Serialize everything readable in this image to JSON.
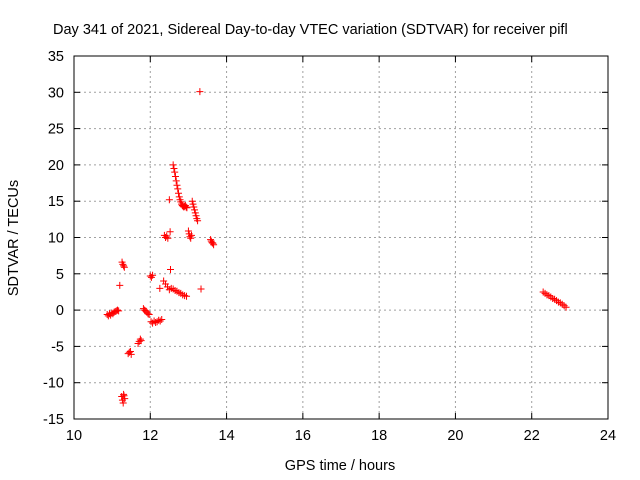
{
  "chart_data": {
    "type": "scatter",
    "title": "Day 341 of 2021, Sidereal Day-to-day VTEC variation (SDTVAR) for receiver pifl",
    "xlabel": "GPS time / hours",
    "ylabel": "SDTVAR / TECUs",
    "xlim": [
      10,
      24
    ],
    "ylim": [
      -15,
      35
    ],
    "xticks": [
      10,
      12,
      14,
      16,
      18,
      20,
      22,
      24
    ],
    "yticks": [
      -15,
      -10,
      -5,
      0,
      5,
      10,
      15,
      20,
      25,
      30,
      35
    ],
    "grid": true,
    "marker": "+",
    "series_color": "#ff0000",
    "series": [
      {
        "name": "SDTVAR",
        "points": [
          [
            10.87,
            -0.6
          ],
          [
            10.9,
            -0.8
          ],
          [
            10.93,
            -0.5
          ],
          [
            10.96,
            -0.7
          ],
          [
            10.99,
            -0.4
          ],
          [
            11.02,
            -0.5
          ],
          [
            11.05,
            -0.3
          ],
          [
            11.08,
            -0.2
          ],
          [
            11.11,
            -0.1
          ],
          [
            11.14,
            0.0
          ],
          [
            11.17,
            -0.1
          ],
          [
            11.2,
            3.4
          ],
          [
            11.26,
            6.6
          ],
          [
            11.28,
            6.3
          ],
          [
            11.3,
            6.1
          ],
          [
            11.32,
            5.9
          ],
          [
            11.25,
            -11.9
          ],
          [
            11.27,
            -12.4
          ],
          [
            11.29,
            -12.8
          ],
          [
            11.31,
            -11.8
          ],
          [
            11.33,
            -12.2
          ],
          [
            11.3,
            -11.6
          ],
          [
            11.42,
            -6.0
          ],
          [
            11.45,
            -5.8
          ],
          [
            11.48,
            -5.7
          ],
          [
            11.5,
            -6.1
          ],
          [
            11.68,
            -4.6
          ],
          [
            11.71,
            -4.3
          ],
          [
            11.74,
            -4.0
          ],
          [
            11.76,
            -4.2
          ],
          [
            11.82,
            0.2
          ],
          [
            11.85,
            0.0
          ],
          [
            11.88,
            -0.1
          ],
          [
            11.91,
            -0.3
          ],
          [
            11.94,
            -0.5
          ],
          [
            11.97,
            -0.6
          ],
          [
            12.0,
            4.7
          ],
          [
            12.03,
            4.5
          ],
          [
            12.06,
            4.8
          ],
          [
            12.02,
            -1.6
          ],
          [
            12.06,
            -1.8
          ],
          [
            12.1,
            -1.5
          ],
          [
            12.14,
            -1.7
          ],
          [
            12.18,
            -1.6
          ],
          [
            12.22,
            -1.4
          ],
          [
            12.26,
            -1.5
          ],
          [
            12.3,
            -1.3
          ],
          [
            12.25,
            3.0
          ],
          [
            12.37,
            10.3
          ],
          [
            12.4,
            10.0
          ],
          [
            12.43,
            10.2
          ],
          [
            12.46,
            9.9
          ],
          [
            12.35,
            4.0
          ],
          [
            12.4,
            3.6
          ],
          [
            12.45,
            3.2
          ],
          [
            12.5,
            15.2
          ],
          [
            12.52,
            10.8
          ],
          [
            12.53,
            5.6
          ],
          [
            12.5,
            2.8
          ],
          [
            12.55,
            3.0
          ],
          [
            12.6,
            2.9
          ],
          [
            12.65,
            2.7
          ],
          [
            12.7,
            2.6
          ],
          [
            12.75,
            2.4
          ],
          [
            12.8,
            2.3
          ],
          [
            12.85,
            2.1
          ],
          [
            12.9,
            2.0
          ],
          [
            12.95,
            1.9
          ],
          [
            12.6,
            20.0
          ],
          [
            12.62,
            19.5
          ],
          [
            12.64,
            19.0
          ],
          [
            12.66,
            18.4
          ],
          [
            12.68,
            17.8
          ],
          [
            12.7,
            17.2
          ],
          [
            12.72,
            16.7
          ],
          [
            12.74,
            16.1
          ],
          [
            12.76,
            15.6
          ],
          [
            12.78,
            15.2
          ],
          [
            12.8,
            14.9
          ],
          [
            12.82,
            14.6
          ],
          [
            12.84,
            14.4
          ],
          [
            12.86,
            14.3
          ],
          [
            12.88,
            14.2
          ],
          [
            12.9,
            14.3
          ],
          [
            12.92,
            14.4
          ],
          [
            12.94,
            14.2
          ],
          [
            12.96,
            14.1
          ],
          [
            13.0,
            10.9
          ],
          [
            13.02,
            10.5
          ],
          [
            13.04,
            10.1
          ],
          [
            13.06,
            9.9
          ],
          [
            13.08,
            10.3
          ],
          [
            13.1,
            15.0
          ],
          [
            13.12,
            14.6
          ],
          [
            13.14,
            14.2
          ],
          [
            13.16,
            13.8
          ],
          [
            13.18,
            13.4
          ],
          [
            13.2,
            13.0
          ],
          [
            13.22,
            12.6
          ],
          [
            13.24,
            12.3
          ],
          [
            13.3,
            30.1
          ],
          [
            13.33,
            2.9
          ],
          [
            13.58,
            9.7
          ],
          [
            13.6,
            9.5
          ],
          [
            13.62,
            9.3
          ],
          [
            13.64,
            9.2
          ],
          [
            13.66,
            9.0
          ],
          [
            22.3,
            2.5
          ],
          [
            22.35,
            2.3
          ],
          [
            22.4,
            2.1
          ],
          [
            22.45,
            2.0
          ],
          [
            22.5,
            1.8
          ],
          [
            22.55,
            1.6
          ],
          [
            22.6,
            1.5
          ],
          [
            22.65,
            1.3
          ],
          [
            22.7,
            1.1
          ],
          [
            22.75,
            1.0
          ],
          [
            22.8,
            0.8
          ],
          [
            22.85,
            0.6
          ],
          [
            22.9,
            0.4
          ]
        ]
      }
    ]
  }
}
